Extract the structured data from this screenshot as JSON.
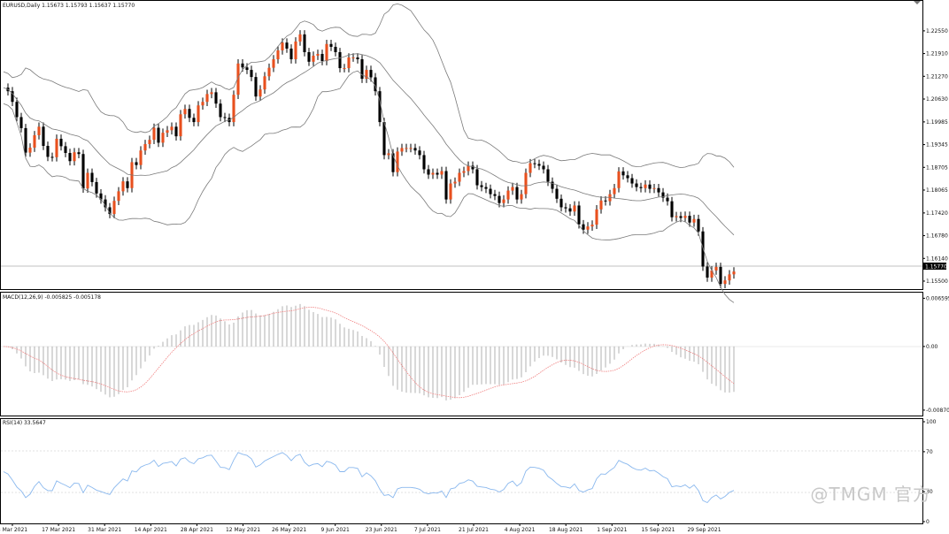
{
  "chart_data": [
    {
      "type": "candlestick",
      "title": "EURUSD,Daily  1.15673 1.15793 1.15637 1.15770",
      "current_price_label": "1.15770",
      "y_ticks": [
        "1.22550",
        "1.21910",
        "1.21270",
        "1.20630",
        "1.19985",
        "1.19345",
        "1.18705",
        "1.18065",
        "1.17420",
        "1.16780",
        "1.16140",
        "1.15500"
      ],
      "x_ticks": [
        "3 Mar 2021",
        "17 Mar 2021",
        "31 Mar 2021",
        "14 Apr 2021",
        "28 Apr 2021",
        "12 May 2021",
        "26 May 2021",
        "9 Jun 2021",
        "23 Jun 2021",
        "7 Jul 2021",
        "21 Jul 2021",
        "4 Aug 2021",
        "18 Aug 2021",
        "1 Sep 2021",
        "15 Sep 2021",
        "29 Sep 2021"
      ],
      "ylim": [
        1.1525,
        1.2322
      ],
      "close": [
        1.2095,
        1.2085,
        1.2055,
        1.2012,
        1.1981,
        1.1912,
        1.1926,
        1.1961,
        1.1985,
        1.1931,
        1.19,
        1.1899,
        1.1951,
        1.193,
        1.1911,
        1.1888,
        1.1913,
        1.1908,
        1.1811,
        1.1855,
        1.1829,
        1.1797,
        1.178,
        1.1758,
        1.1739,
        1.1776,
        1.1803,
        1.1831,
        1.1812,
        1.1885,
        1.1877,
        1.1918,
        1.1936,
        1.1948,
        1.1982,
        1.194,
        1.1968,
        1.1975,
        1.1985,
        1.1958,
        1.202,
        1.2035,
        1.201,
        1.1998,
        1.2045,
        1.2055,
        1.2077,
        1.2082,
        1.205,
        1.2012,
        1.201,
        1.1998,
        1.2075,
        1.2163,
        1.2152,
        1.2145,
        1.2125,
        1.207,
        1.209,
        1.2127,
        1.2151,
        1.2175,
        1.22,
        1.2222,
        1.2205,
        1.2175,
        1.2225,
        1.2245,
        1.2195,
        1.2168,
        1.2185,
        1.219,
        1.217,
        1.2218,
        1.221,
        1.2195,
        1.215,
        1.215,
        1.218,
        1.218,
        1.2175,
        1.212,
        1.2145,
        1.2124,
        1.2085,
        1.1998,
        1.1905,
        1.191,
        1.1857,
        1.1915,
        1.1925,
        1.1925,
        1.1925,
        1.1918,
        1.1905,
        1.1865,
        1.185,
        1.1855,
        1.185,
        1.186,
        1.178,
        1.1825,
        1.183,
        1.1855,
        1.186,
        1.1875,
        1.1865,
        1.182,
        1.1815,
        1.181,
        1.1795,
        1.179,
        1.177,
        1.178,
        1.1805,
        1.1815,
        1.178,
        1.1795,
        1.1855,
        1.1882,
        1.188,
        1.1875,
        1.1865,
        1.183,
        1.181,
        1.1782,
        1.1758,
        1.1755,
        1.1746,
        1.1763,
        1.171,
        1.1695,
        1.1704,
        1.1709,
        1.1752,
        1.1777,
        1.1775,
        1.1795,
        1.1812,
        1.1859,
        1.1848,
        1.184,
        1.1825,
        1.1815,
        1.1812,
        1.1822,
        1.181,
        1.1812,
        1.18,
        1.1785,
        1.1775,
        1.173,
        1.1733,
        1.1728,
        1.1734,
        1.1715,
        1.1725,
        1.169,
        1.1591,
        1.156,
        1.158,
        1.159,
        1.1542,
        1.1552,
        1.1569,
        1.1577
      ],
      "bollinger": {
        "period": 20
      },
      "volumes": {}
    },
    {
      "type": "macd",
      "title": "MACD(12,26,9) -0.005825 -0.005178",
      "y_ticks": [
        "0.006595",
        "0.00",
        "-0.008704"
      ],
      "ylim": [
        -0.0092,
        0.007
      ]
    },
    {
      "type": "rsi",
      "title": "RSI(14) 33.5647",
      "y_ticks": [
        "100",
        "70",
        "30",
        "0"
      ],
      "ylim": [
        0,
        100
      ]
    }
  ],
  "colors": {
    "bull": "#e8501e",
    "bear": "#000000",
    "band": "#7a7a7a",
    "signal": "#f08080",
    "rsi": "#8ab8ee",
    "hist": "#b0b0b0"
  },
  "watermark": "@TMGM 官方"
}
